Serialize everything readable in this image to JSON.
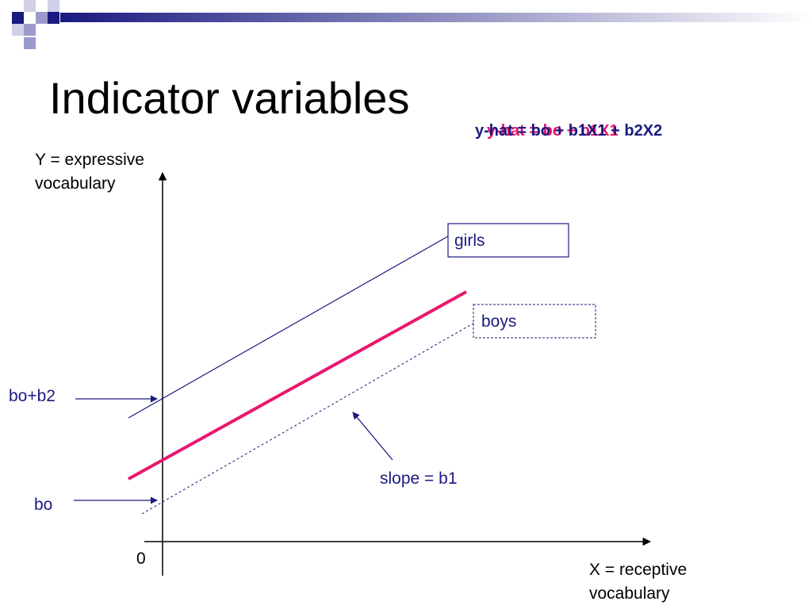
{
  "slide": {
    "title": "Indicator variables",
    "equation_back": "y-hat = bo + b1X1",
    "equation_front": "y-hat = bo + b1X1 + b2X2"
  },
  "diagram": {
    "y_axis_label_line1": "Y = expressive",
    "y_axis_label_line2": "vocabulary",
    "x_axis_label_line1": "X = receptive",
    "x_axis_label_line2": "vocabulary",
    "origin_label": "0",
    "intercept_high_label": "bo+b2",
    "intercept_low_label": "bo",
    "slope_label": "slope = b1",
    "girls_label": "girls",
    "boys_label": "boys"
  },
  "colors": {
    "navy": "#1a1a80",
    "pink": "#e8176f",
    "deco_dark": "#1a1a80",
    "deco_light": "#9a9acc"
  }
}
